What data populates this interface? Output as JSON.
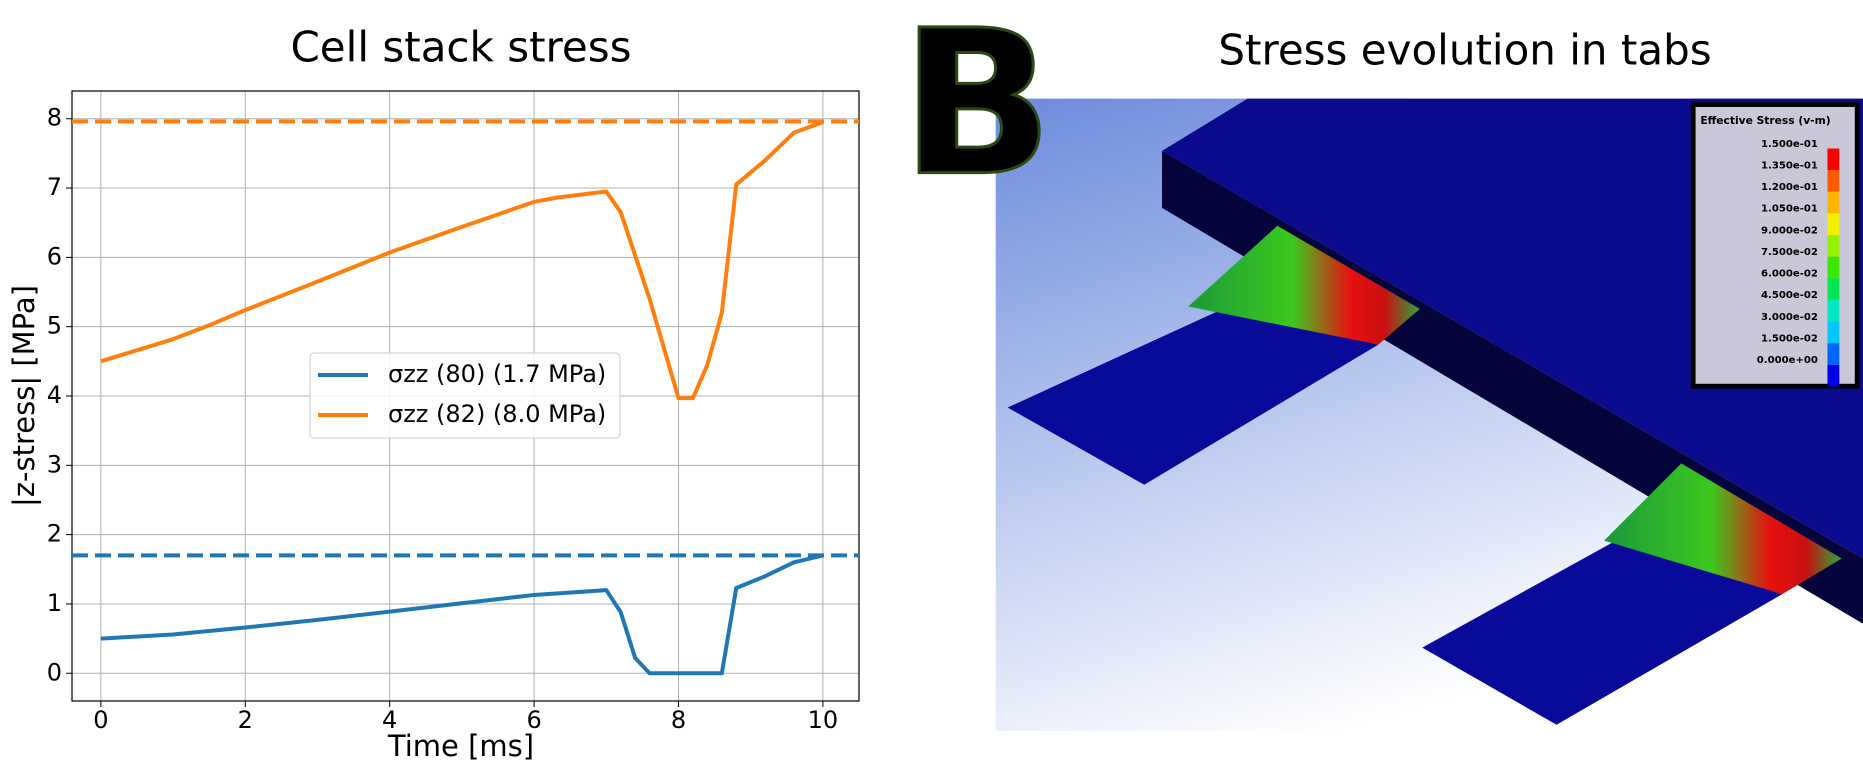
{
  "chart_data": {
    "type": "line",
    "title": "Cell stack stress",
    "x_label": "Time [ms]",
    "y_label": "|z-stress| [MPa]",
    "series": [
      {
        "name": "σzz (80) (1.7 MPa)",
        "color": "#1f77b4",
        "x": [
          0,
          1,
          2,
          3,
          4,
          5,
          6,
          7,
          7.2,
          7.4,
          7.6,
          8,
          8.6,
          8.8,
          9.2,
          9.6,
          10
        ],
        "values": [
          0.5,
          0.56,
          0.66,
          0.77,
          0.89,
          1.01,
          1.13,
          1.2,
          0.88,
          0.22,
          0,
          0,
          0,
          1.23,
          1.4,
          1.6,
          1.7
        ]
      },
      {
        "name": "σzz (82) (8.0 MPa)",
        "color": "#ff7f0e",
        "x": [
          0,
          1,
          1.5,
          2,
          3,
          4,
          5,
          6,
          6.3,
          7,
          7.2,
          7.6,
          8,
          8.2,
          8.4,
          8.6,
          8.8,
          9.2,
          9.6,
          10
        ],
        "values": [
          4.5,
          4.82,
          5.02,
          5.24,
          5.65,
          6.07,
          6.44,
          6.8,
          6.86,
          6.95,
          6.65,
          5.4,
          3.97,
          3.97,
          4.45,
          5.2,
          7.05,
          7.4,
          7.8,
          7.95
        ]
      }
    ],
    "reference_lines": [
      {
        "value": 1.7,
        "color": "#1f77b4"
      },
      {
        "value": 7.96,
        "color": "#ff7f0e"
      }
    ],
    "xlim": [
      -0.4,
      10.5
    ],
    "xticks": [
      0,
      2,
      4,
      6,
      8,
      10
    ],
    "ylim": [
      -0.4,
      8.4
    ],
    "yticks": [
      0,
      1,
      2,
      3,
      4,
      5,
      6,
      7,
      8
    ],
    "grid": true,
    "legend": "center"
  },
  "panel_label": "B",
  "image_title": "Stress evolution in tabs",
  "contour_legend": {
    "title": "Effective Stress (v-m)",
    "levels": [
      {
        "label": "1.500e-01",
        "color": "#ff0000"
      },
      {
        "label": "1.350e-01",
        "color": "#ff5a00"
      },
      {
        "label": "1.200e-01",
        "color": "#ffb400"
      },
      {
        "label": "1.050e-01",
        "color": "#f0f000"
      },
      {
        "label": "9.000e-02",
        "color": "#96f000"
      },
      {
        "label": "7.500e-02",
        "color": "#3ce600"
      },
      {
        "label": "6.000e-02",
        "color": "#00e650"
      },
      {
        "label": "4.500e-02",
        "color": "#00e6be"
      },
      {
        "label": "3.000e-02",
        "color": "#00c8ff"
      },
      {
        "label": "1.500e-02",
        "color": "#0064ff"
      },
      {
        "label": "0.000e+00",
        "color": "#0000e6"
      }
    ]
  }
}
